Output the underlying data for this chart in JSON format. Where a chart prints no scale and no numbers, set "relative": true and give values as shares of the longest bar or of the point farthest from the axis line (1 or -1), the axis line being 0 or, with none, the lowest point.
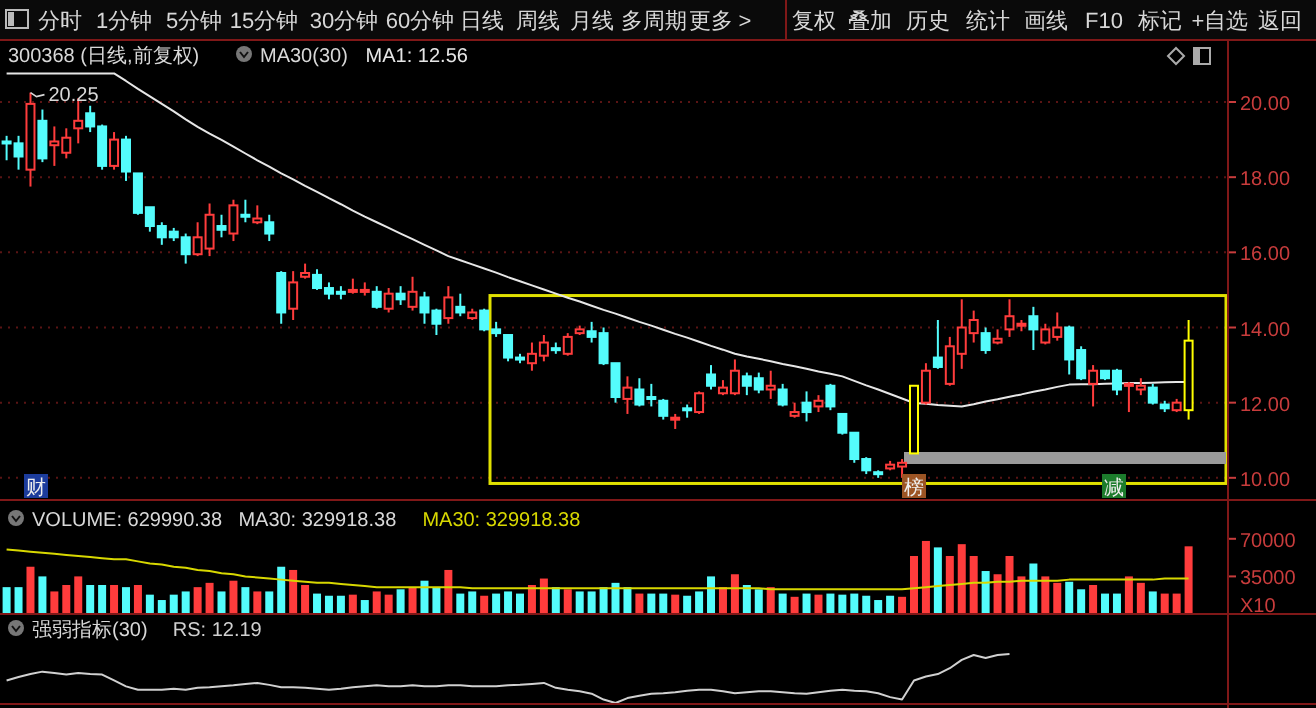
{
  "chart_data": [
    {
      "type": "other",
      "annotations": [
        "分时",
        "1分钟",
        "5分钟",
        "15分钟",
        "30分钟",
        "60分钟",
        "日线",
        "周线",
        "月线",
        "多周期",
        "更多 >",
        "复权",
        "叠加",
        "历史",
        "统计",
        "画线",
        "F10",
        "标记",
        "+自选",
        "返回"
      ]
    },
    {
      "type": "candlestick",
      "title": "300368 (日线,前复权)",
      "categories": [
        null,
        null,
        null,
        null,
        null,
        null,
        null,
        null,
        null,
        null,
        null,
        null,
        null,
        null,
        null,
        null,
        null,
        null,
        null,
        null,
        null,
        null,
        null,
        null,
        null,
        null,
        null,
        null,
        null,
        null,
        null,
        null,
        null,
        null,
        null,
        null,
        null,
        null,
        null,
        null,
        null,
        null,
        null,
        null,
        null,
        null,
        null,
        null,
        null,
        null,
        null,
        null,
        null,
        null,
        null,
        null,
        null,
        null,
        null,
        null,
        null,
        null,
        null,
        null,
        null,
        null,
        null,
        null,
        null,
        null,
        null,
        null,
        null,
        null,
        null,
        null,
        null,
        null,
        null,
        null,
        null,
        null,
        null,
        null,
        null,
        null,
        null,
        null,
        null,
        null,
        null,
        null,
        null,
        null,
        null,
        null,
        null,
        null,
        null,
        null
      ],
      "ohlc": [
        [
          18.95,
          19.1,
          18.45,
          18.9
        ],
        [
          18.9,
          19.1,
          18.2,
          18.55
        ],
        [
          18.2,
          20.25,
          17.75,
          19.95
        ],
        [
          19.5,
          19.8,
          18.4,
          18.5
        ],
        [
          18.85,
          19.35,
          18.3,
          18.95
        ],
        [
          18.65,
          19.3,
          18.5,
          19.05
        ],
        [
          19.3,
          20.1,
          18.9,
          19.5
        ],
        [
          19.7,
          19.9,
          19.2,
          19.35
        ],
        [
          19.35,
          19.4,
          18.2,
          18.3
        ],
        [
          18.3,
          19.2,
          18.2,
          19.0
        ],
        [
          19.0,
          19.1,
          17.9,
          18.15
        ],
        [
          18.1,
          18.1,
          17.0,
          17.05
        ],
        [
          17.2,
          17.2,
          16.55,
          16.7
        ],
        [
          16.7,
          16.8,
          16.2,
          16.4
        ],
        [
          16.55,
          16.65,
          16.3,
          16.4
        ],
        [
          16.4,
          16.5,
          15.7,
          15.95
        ],
        [
          15.95,
          16.8,
          15.9,
          16.4
        ],
        [
          16.1,
          17.3,
          15.9,
          17.0
        ],
        [
          16.7,
          17.0,
          16.4,
          16.6
        ],
        [
          16.5,
          17.4,
          16.3,
          17.25
        ],
        [
          17.0,
          17.4,
          16.8,
          16.95
        ],
        [
          16.8,
          17.25,
          16.75,
          16.9
        ],
        [
          16.8,
          17.0,
          16.3,
          16.5
        ],
        [
          15.45,
          15.5,
          14.1,
          14.4
        ],
        [
          14.5,
          15.5,
          14.2,
          15.2
        ],
        [
          15.35,
          15.7,
          15.3,
          15.45
        ],
        [
          15.4,
          15.55,
          15.0,
          15.05
        ],
        [
          15.05,
          15.2,
          14.75,
          14.9
        ],
        [
          14.95,
          15.1,
          14.75,
          14.9
        ],
        [
          14.95,
          15.3,
          14.9,
          15.0
        ],
        [
          14.95,
          15.2,
          14.85,
          15.0
        ],
        [
          14.95,
          15.1,
          14.5,
          14.55
        ],
        [
          14.5,
          15.05,
          14.4,
          14.9
        ],
        [
          14.9,
          15.1,
          14.6,
          14.75
        ],
        [
          14.55,
          15.35,
          14.45,
          14.95
        ],
        [
          14.8,
          14.95,
          14.1,
          14.4
        ],
        [
          14.45,
          14.5,
          13.8,
          14.1
        ],
        [
          14.25,
          15.1,
          14.1,
          14.8
        ],
        [
          14.55,
          14.9,
          14.3,
          14.4
        ],
        [
          14.25,
          14.5,
          14.2,
          14.4
        ],
        [
          14.45,
          14.5,
          13.9,
          13.95
        ],
        [
          13.95,
          14.15,
          13.75,
          13.85
        ],
        [
          13.8,
          13.8,
          13.1,
          13.2
        ],
        [
          13.2,
          13.3,
          13.05,
          13.15
        ],
        [
          13.05,
          13.6,
          12.85,
          13.3
        ],
        [
          13.25,
          13.8,
          13.1,
          13.6
        ],
        [
          13.45,
          13.6,
          13.3,
          13.4
        ],
        [
          13.3,
          13.85,
          13.25,
          13.75
        ],
        [
          13.85,
          14.05,
          13.8,
          13.95
        ],
        [
          13.9,
          14.15,
          13.6,
          13.75
        ],
        [
          13.85,
          14.0,
          13.0,
          13.05
        ],
        [
          13.05,
          13.05,
          12.0,
          12.15
        ],
        [
          12.1,
          12.7,
          11.7,
          12.4
        ],
        [
          12.35,
          12.65,
          11.9,
          11.95
        ],
        [
          12.15,
          12.5,
          11.9,
          12.1
        ],
        [
          12.05,
          12.1,
          11.55,
          11.65
        ],
        [
          11.55,
          11.7,
          11.3,
          11.6
        ],
        [
          11.85,
          11.95,
          11.6,
          11.8
        ],
        [
          11.75,
          12.3,
          11.7,
          12.25
        ],
        [
          12.75,
          13.0,
          12.35,
          12.45
        ],
        [
          12.25,
          12.6,
          12.2,
          12.4
        ],
        [
          12.25,
          13.15,
          12.2,
          12.85
        ],
        [
          12.7,
          12.8,
          12.2,
          12.45
        ],
        [
          12.65,
          12.8,
          12.25,
          12.35
        ],
        [
          12.35,
          12.85,
          12.1,
          12.45
        ],
        [
          12.35,
          12.5,
          11.9,
          11.95
        ],
        [
          11.65,
          12.0,
          11.6,
          11.75
        ],
        [
          12.0,
          12.3,
          11.5,
          11.75
        ],
        [
          11.9,
          12.2,
          11.75,
          12.05
        ],
        [
          12.45,
          12.5,
          11.8,
          11.9
        ],
        [
          11.7,
          11.7,
          11.15,
          11.2
        ],
        [
          11.2,
          11.2,
          10.4,
          10.5
        ],
        [
          10.5,
          10.55,
          10.1,
          10.2
        ],
        [
          10.15,
          10.2,
          10.0,
          10.1
        ],
        [
          10.25,
          10.45,
          10.2,
          10.35
        ],
        [
          10.3,
          10.5,
          10.0,
          10.4
        ],
        [
          10.65,
          12.45,
          10.65,
          12.45
        ],
        [
          12.0,
          13.05,
          11.95,
          12.85
        ],
        [
          13.2,
          14.2,
          12.9,
          12.95
        ],
        [
          12.5,
          13.75,
          12.45,
          13.5
        ],
        [
          13.3,
          14.75,
          12.9,
          14.0
        ],
        [
          13.85,
          14.45,
          13.6,
          14.2
        ],
        [
          13.85,
          14.0,
          13.3,
          13.4
        ],
        [
          13.6,
          13.95,
          13.55,
          13.7
        ],
        [
          13.95,
          14.75,
          13.75,
          14.3
        ],
        [
          14.05,
          14.2,
          13.9,
          14.1
        ],
        [
          14.3,
          14.55,
          13.4,
          13.95
        ],
        [
          13.6,
          14.1,
          13.55,
          13.95
        ],
        [
          13.75,
          14.4,
          13.65,
          14.0
        ],
        [
          14.0,
          14.05,
          12.75,
          13.15
        ],
        [
          13.4,
          13.5,
          12.6,
          12.65
        ],
        [
          12.5,
          13.0,
          11.9,
          12.85
        ],
        [
          12.85,
          12.85,
          12.6,
          12.65
        ],
        [
          12.85,
          12.9,
          12.2,
          12.35
        ],
        [
          12.45,
          12.55,
          11.75,
          12.5
        ],
        [
          12.35,
          12.65,
          12.2,
          12.45
        ],
        [
          12.4,
          12.5,
          11.95,
          12.0
        ],
        [
          11.95,
          12.05,
          11.75,
          11.85
        ],
        [
          11.8,
          12.1,
          11.75,
          12.0
        ],
        [
          11.8,
          14.2,
          11.55,
          13.65
        ]
      ],
      "colors": [
        "#54fcfc",
        "#54fcfc",
        "#ff3c3c",
        "#54fcfc",
        "#ff3c3c",
        "#ff3c3c",
        "#ff3c3c",
        "#54fcfc",
        "#54fcfc",
        "#ff3c3c",
        "#54fcfc",
        "#54fcfc",
        "#54fcfc",
        "#54fcfc",
        "#54fcfc",
        "#54fcfc",
        "#ff3c3c",
        "#ff3c3c",
        "#54fcfc",
        "#ff3c3c",
        "#54fcfc",
        "#ff3c3c",
        "#54fcfc",
        "#54fcfc",
        "#ff3c3c",
        "#ff3c3c",
        "#54fcfc",
        "#54fcfc",
        "#54fcfc",
        "#ff3c3c",
        "#ff3c3c",
        "#54fcfc",
        "#ff3c3c",
        "#54fcfc",
        "#ff3c3c",
        "#54fcfc",
        "#54fcfc",
        "#ff3c3c",
        "#54fcfc",
        "#ff3c3c",
        "#54fcfc",
        "#54fcfc",
        "#54fcfc",
        "#54fcfc",
        "#ff3c3c",
        "#ff3c3c",
        "#54fcfc",
        "#ff3c3c",
        "#ff3c3c",
        "#54fcfc",
        "#54fcfc",
        "#54fcfc",
        "#ff3c3c",
        "#54fcfc",
        "#54fcfc",
        "#54fcfc",
        "#ff3c3c",
        "#54fcfc",
        "#ff3c3c",
        "#54fcfc",
        "#ff3c3c",
        "#ff3c3c",
        "#54fcfc",
        "#54fcfc",
        "#ff3c3c",
        "#54fcfc",
        "#ff3c3c",
        "#54fcfc",
        "#ff3c3c",
        "#54fcfc",
        "#54fcfc",
        "#54fcfc",
        "#54fcfc",
        "#54fcfc",
        "#ff3c3c",
        "#ff3c3c",
        "#ffff00",
        "#ff3c3c",
        "#54fcfc",
        "#ff3c3c",
        "#ff3c3c",
        "#ff3c3c",
        "#54fcfc",
        "#ff3c3c",
        "#ff3c3c",
        "#ff3c3c",
        "#54fcfc",
        "#ff3c3c",
        "#ff3c3c",
        "#54fcfc",
        "#54fcfc",
        "#ff3c3c",
        "#54fcfc",
        "#54fcfc",
        "#ff3c3c",
        "#ff3c3c",
        "#54fcfc",
        "#54fcfc",
        "#ff3c3c",
        "#ffff00"
      ],
      "series": [
        {
          "type": "line",
          "name": "MA1: 12.56",
          "color": "#e6e6e6",
          "values": [
            20.76,
            20.76,
            20.76,
            20.76,
            20.76,
            20.76,
            20.76,
            20.76,
            20.76,
            20.76,
            20.56,
            20.35,
            20.15,
            19.95,
            19.75,
            19.54,
            19.34,
            19.16,
            18.99,
            18.81,
            18.63,
            18.45,
            18.28,
            18.1,
            17.94,
            17.77,
            17.61,
            17.44,
            17.28,
            17.11,
            16.95,
            16.8,
            16.65,
            16.5,
            16.35,
            16.2,
            16.05,
            15.9,
            15.79,
            15.68,
            15.57,
            15.46,
            15.34,
            15.23,
            15.12,
            15.01,
            14.9,
            14.79,
            14.69,
            14.58,
            14.47,
            14.37,
            14.26,
            14.15,
            14.05,
            13.94,
            13.83,
            13.73,
            13.62,
            13.51,
            13.41,
            13.3,
            13.23,
            13.17,
            13.1,
            13.03,
            12.97,
            12.9,
            12.83,
            12.77,
            12.7,
            12.58,
            12.46,
            12.35,
            12.23,
            12.11,
            11.99,
            11.97,
            11.94,
            11.92,
            11.9,
            11.96,
            12.03,
            12.09,
            12.16,
            12.22,
            12.29,
            12.35,
            12.42,
            12.48,
            12.49,
            12.49,
            12.5,
            12.51,
            12.52,
            12.52,
            12.53,
            12.54,
            12.55,
            12.55
          ]
        }
      ],
      "ylim": [
        9.41,
        21.65
      ],
      "yticks": [
        {
          "value": 10,
          "label": "10.00"
        },
        {
          "value": 12,
          "label": "12.00"
        },
        {
          "value": 14,
          "label": "14.00"
        },
        {
          "value": 16,
          "label": "16.00"
        },
        {
          "value": 18,
          "label": "18.00"
        },
        {
          "value": 20,
          "label": "20.00"
        }
      ],
      "grid": "y",
      "tick_labels": "y",
      "legend": "top left",
      "annotations": [
        "MA30(30)",
        "20.25",
        "财",
        "榜",
        "减"
      ]
    },
    {
      "type": "bar",
      "title": "VOLUME: 629990.38",
      "categories": [
        null,
        null,
        null,
        null,
        null,
        null,
        null,
        null,
        null,
        null,
        null,
        null,
        null,
        null,
        null,
        null,
        null,
        null,
        null,
        null,
        null,
        null,
        null,
        null,
        null,
        null,
        null,
        null,
        null,
        null,
        null,
        null,
        null,
        null,
        null,
        null,
        null,
        null,
        null,
        null,
        null,
        null,
        null,
        null,
        null,
        null,
        null,
        null,
        null,
        null,
        null,
        null,
        null,
        null,
        null,
        null,
        null,
        null,
        null,
        null,
        null,
        null,
        null,
        null,
        null,
        null,
        null,
        null,
        null,
        null,
        null,
        null,
        null,
        null,
        null,
        null,
        null,
        null,
        null,
        null,
        null,
        null,
        null,
        null,
        null,
        null,
        null,
        null,
        null,
        null,
        null,
        null,
        null,
        null,
        null,
        null,
        null,
        null,
        null,
        null
      ],
      "series": [
        {
          "type": "bar",
          "values": [
            25000,
            25000,
            44000,
            35000,
            21000,
            27000,
            35000,
            27000,
            27000,
            27000,
            25000,
            27000,
            18000,
            13000,
            18000,
            21000,
            25000,
            29000,
            21000,
            31000,
            25000,
            21000,
            21000,
            44000,
            41000,
            27000,
            19000,
            17000,
            17000,
            18000,
            13000,
            21000,
            18000,
            23000,
            25000,
            31000,
            25000,
            41000,
            19000,
            21000,
            17000,
            19000,
            21000,
            19000,
            27000,
            33000,
            25000,
            23000,
            21000,
            21000,
            25000,
            29000,
            25000,
            19000,
            19000,
            19000,
            18000,
            17000,
            21000,
            35000,
            25000,
            37000,
            27000,
            23000,
            25000,
            19000,
            16000,
            19000,
            18000,
            19000,
            18000,
            19000,
            17000,
            13000,
            17000,
            16000,
            54000,
            68000,
            62000,
            54000,
            65000,
            54000,
            40000,
            37000,
            54000,
            35000,
            47000,
            35000,
            29000,
            30000,
            23000,
            27000,
            19000,
            19000,
            35000,
            29000,
            21000,
            19000,
            19000,
            63000
          ],
          "colors": [
            "#54fcfc",
            "#54fcfc",
            "#ff3c3c",
            "#54fcfc",
            "#ff3c3c",
            "#ff3c3c",
            "#ff3c3c",
            "#54fcfc",
            "#54fcfc",
            "#ff3c3c",
            "#54fcfc",
            "#ff3c3c",
            "#54fcfc",
            "#54fcfc",
            "#54fcfc",
            "#54fcfc",
            "#ff3c3c",
            "#ff3c3c",
            "#54fcfc",
            "#ff3c3c",
            "#54fcfc",
            "#ff3c3c",
            "#54fcfc",
            "#54fcfc",
            "#ff3c3c",
            "#ff3c3c",
            "#54fcfc",
            "#54fcfc",
            "#54fcfc",
            "#ff3c3c",
            "#54fcfc",
            "#ff3c3c",
            "#ff3c3c",
            "#54fcfc",
            "#ff3c3c",
            "#54fcfc",
            "#54fcfc",
            "#ff3c3c",
            "#54fcfc",
            "#54fcfc",
            "#ff3c3c",
            "#54fcfc",
            "#54fcfc",
            "#54fcfc",
            "#ff3c3c",
            "#ff3c3c",
            "#54fcfc",
            "#ff3c3c",
            "#54fcfc",
            "#54fcfc",
            "#54fcfc",
            "#54fcfc",
            "#54fcfc",
            "#ff3c3c",
            "#54fcfc",
            "#54fcfc",
            "#ff3c3c",
            "#54fcfc",
            "#54fcfc",
            "#54fcfc",
            "#ff3c3c",
            "#ff3c3c",
            "#54fcfc",
            "#54fcfc",
            "#ff3c3c",
            "#54fcfc",
            "#ff3c3c",
            "#54fcfc",
            "#ff3c3c",
            "#54fcfc",
            "#54fcfc",
            "#54fcfc",
            "#54fcfc",
            "#54fcfc",
            "#54fcfc",
            "#ff3c3c",
            "#ff3c3c",
            "#ff3c3c",
            "#54fcfc",
            "#ff3c3c",
            "#ff3c3c",
            "#ff3c3c",
            "#54fcfc",
            "#ff3c3c",
            "#ff3c3c",
            "#ff3c3c",
            "#54fcfc",
            "#ff3c3c",
            "#ff3c3c",
            "#54fcfc",
            "#54fcfc",
            "#ff3c3c",
            "#54fcfc",
            "#54fcfc",
            "#ff3c3c",
            "#ff3c3c",
            "#54fcfc",
            "#ff3c3c",
            "#ff3c3c",
            "#ff3c3c"
          ]
        },
        {
          "type": "line",
          "name": "MA30: 329918.38",
          "color": "#d8d800",
          "values": [
            60000,
            59000,
            58000,
            57000,
            56000,
            55000,
            54000,
            53000,
            52000,
            51000,
            51000,
            49000,
            47000,
            46000,
            44000,
            43000,
            41000,
            40000,
            38000,
            37000,
            35000,
            34000,
            33000,
            32000,
            31000,
            30000,
            29000,
            29000,
            28000,
            27000,
            26000,
            25000,
            25000,
            25000,
            25000,
            25000,
            25000,
            25000,
            25000,
            24000,
            24000,
            24000,
            24000,
            24000,
            24000,
            24000,
            24000,
            24000,
            24000,
            24000,
            24000,
            24000,
            24000,
            24000,
            24000,
            24000,
            24000,
            24000,
            24000,
            24000,
            24000,
            24000,
            24000,
            24000,
            23000,
            23000,
            23000,
            23000,
            23000,
            23000,
            23000,
            23000,
            23000,
            23000,
            23000,
            23000,
            24000,
            25000,
            26000,
            27000,
            28000,
            29000,
            29000,
            30000,
            30000,
            31000,
            31000,
            31000,
            31000,
            32000,
            32000,
            32000,
            32000,
            32000,
            32000,
            32000,
            32000,
            33000,
            33000,
            33000
          ]
        }
      ],
      "ylim": [
        0,
        70000
      ],
      "yticks": [
        35000,
        70000
      ],
      "tick_labels": "y",
      "legend": "top left",
      "annotations": [
        "MA30: 329918.38",
        "X10"
      ]
    },
    {
      "type": "line",
      "title": "强弱指标(30)",
      "relative": true,
      "legend": "top left",
      "categories": [
        null,
        null,
        null,
        null,
        null,
        null,
        null,
        null,
        null,
        null,
        null,
        null,
        null,
        null,
        null,
        null,
        null,
        null,
        null,
        null,
        null,
        null,
        null,
        null,
        null,
        null,
        null,
        null,
        null,
        null,
        null,
        null,
        null,
        null,
        null,
        null,
        null,
        null,
        null,
        null,
        null,
        null,
        null,
        null,
        null,
        null,
        null,
        null,
        null,
        null,
        null,
        null,
        null,
        null,
        null,
        null,
        null,
        null,
        null,
        null,
        null,
        null,
        null,
        null,
        null,
        null,
        null,
        null,
        null,
        null,
        null,
        null,
        null,
        null,
        null,
        null,
        null,
        null,
        null,
        null,
        null,
        null,
        null,
        null,
        null,
        null,
        null,
        null,
        null,
        null,
        null,
        null,
        null,
        null,
        null,
        null,
        null,
        null,
        null,
        null
      ],
      "series": [
        {
          "name": "RS: 12.19",
          "color": "#d0d0d0",
          "values": [
            0.46,
            0.53,
            0.59,
            0.64,
            0.61,
            0.58,
            0.61,
            0.59,
            0.58,
            0.46,
            0.34,
            0.27,
            0.27,
            0.27,
            0.29,
            0.27,
            0.31,
            0.32,
            0.34,
            0.36,
            0.39,
            0.41,
            0.37,
            0.32,
            0.32,
            0.31,
            0.29,
            0.27,
            0.29,
            0.32,
            0.34,
            0.36,
            0.34,
            0.34,
            0.36,
            0.34,
            0.34,
            0.36,
            0.36,
            0.34,
            0.34,
            0.34,
            0.36,
            0.37,
            0.39,
            0.41,
            0.31,
            0.27,
            0.24,
            0.19,
            0.07,
            0,
            0.1,
            0.15,
            0.19,
            0.2,
            0.22,
            0.25,
            0.27,
            0.27,
            0.24,
            0.2,
            0.22,
            0.24,
            0.24,
            0.22,
            0.2,
            0.19,
            0.22,
            0.25,
            0.27,
            0.25,
            0.24,
            0.2,
            0.12,
            0.07,
            0.46,
            0.54,
            0.59,
            0.71,
            0.88,
            0.98,
            0.92,
            0.98,
            1,
            null,
            null,
            null,
            null,
            null,
            null,
            null,
            null,
            null,
            null,
            null,
            null,
            null,
            null,
            null
          ]
        }
      ]
    }
  ]
}
